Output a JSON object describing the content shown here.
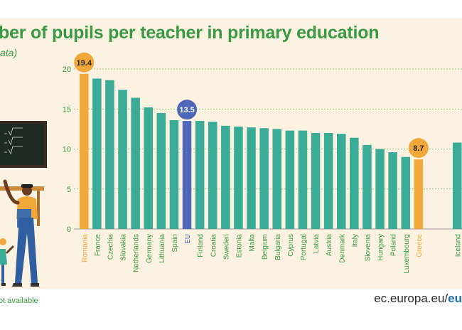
{
  "title": "ber of pupils per teacher in primary education",
  "subtitle": "ata)",
  "footer": {
    "note": "ot available",
    "source_prefix": "ec.europa.eu/",
    "source_bold": "eu"
  },
  "colors": {
    "bar": "#3aab96",
    "highlight": "#f2a73b",
    "eu": "#4f67b8",
    "title": "#3a9a43",
    "background": "#fbf2e1"
  },
  "chart_data": {
    "type": "bar",
    "ylim": [
      0,
      20
    ],
    "yticks": [
      0,
      5,
      10,
      15,
      20
    ],
    "grid": true,
    "categories": [
      "Romania",
      "France",
      "Czechia",
      "Slovakia",
      "Netherlands",
      "Germany",
      "Lithuania",
      "Spain",
      "EU",
      "Finland",
      "Croatia",
      "Sweden",
      "Estonia",
      "Malta",
      "Belgium",
      "Bulgaria",
      "Cyprus",
      "Portugal",
      "Latvia",
      "Austria",
      "Denmark",
      "Italy",
      "Slovenia",
      "Hungary",
      "Poland",
      "Luxembourg",
      "Greece",
      "Iceland"
    ],
    "values": [
      19.4,
      18.8,
      18.6,
      17.4,
      16.4,
      15.2,
      14.5,
      13.6,
      13.5,
      13.5,
      13.4,
      12.9,
      12.8,
      12.7,
      12.6,
      12.5,
      12.3,
      12.3,
      12.0,
      12.0,
      11.9,
      11.4,
      10.5,
      10.0,
      9.6,
      9.0,
      8.7,
      10.8
    ],
    "highlight": [
      "Romania",
      "Greece"
    ],
    "eu": "EU",
    "data_labels": [
      {
        "category": "Romania",
        "text": "19.4"
      },
      {
        "category": "EU",
        "text": "13.5"
      },
      {
        "category": "Greece",
        "text": "8.7"
      }
    ]
  }
}
